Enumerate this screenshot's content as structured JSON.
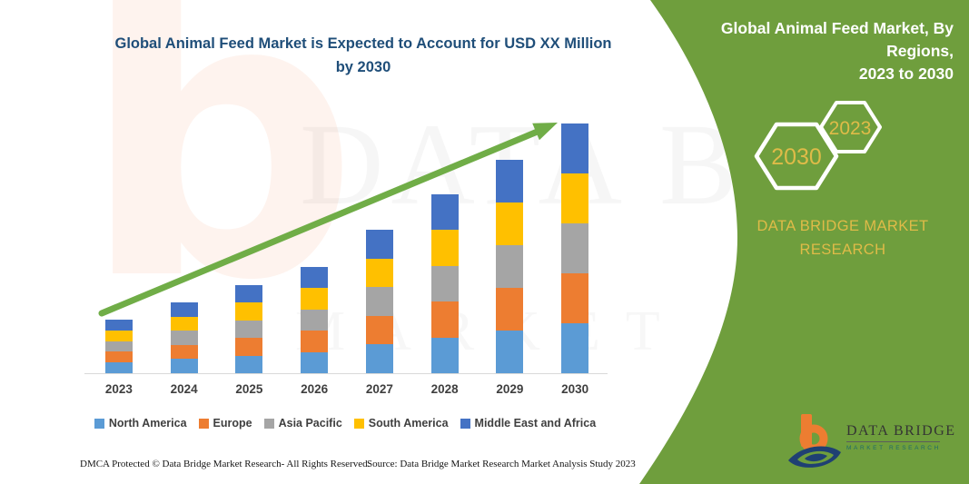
{
  "header": {
    "title_line1": "Global Animal Feed Market is Expected to Account for USD XX Million",
    "title_line2": "by 2030"
  },
  "sidebar": {
    "title_line1": "Global Animal Feed Market, By Regions,",
    "title_line2": "2023 to 2030",
    "hexagons": [
      {
        "label": "2030"
      },
      {
        "label": "2023"
      }
    ],
    "brand_line1": "DATA BRIDGE MARKET",
    "brand_line2": "RESEARCH",
    "panel_color": "#6F9E3D",
    "gold_color": "#DFBB48",
    "logo": {
      "name_text": "DATA BRIDGE",
      "sub_text": "MARKET RESEARCH"
    }
  },
  "chart_data": {
    "type": "bar",
    "stacked": true,
    "title": "Global Animal Feed Market is Expected to Account for USD XX Million by 2030",
    "xlabel": "",
    "ylabel": "",
    "y_axis_visible": false,
    "value_labels_visible": false,
    "values_unit": "USD Million (values masked as XX; heights are relative estimates)",
    "legend_position": "bottom",
    "grid": false,
    "x_axis_line_color": "#D9D9D9",
    "categories": [
      "2023",
      "2024",
      "2025",
      "2026",
      "2027",
      "2028",
      "2029",
      "2030"
    ],
    "series": [
      {
        "name": "North America",
        "color": "#5B9BD5",
        "values": [
          11.8,
          15.6,
          19.4,
          23.4,
          31.6,
          39.4,
          47.0,
          55.0
        ]
      },
      {
        "name": "Europe",
        "color": "#ED7D31",
        "values": [
          11.8,
          15.6,
          19.4,
          23.4,
          31.6,
          39.4,
          47.0,
          55.0
        ]
      },
      {
        "name": "Asia Pacific",
        "color": "#A5A5A5",
        "values": [
          11.8,
          15.6,
          19.4,
          23.4,
          31.6,
          39.4,
          47.0,
          55.0
        ]
      },
      {
        "name": "South America",
        "color": "#FFC000",
        "values": [
          11.8,
          15.6,
          19.4,
          23.4,
          31.6,
          39.4,
          47.0,
          55.0
        ]
      },
      {
        "name": "Middle East and Africa",
        "color": "#4472C4",
        "values": [
          11.8,
          15.6,
          19.4,
          23.4,
          31.6,
          39.4,
          47.0,
          55.0
        ]
      }
    ],
    "stack_totals": [
      59,
      78,
      97,
      117,
      158,
      197,
      235,
      275
    ],
    "annotations": [
      "upward growth trend arrow from 2023 to 2030"
    ],
    "trend_arrow": {
      "color": "#70AD47",
      "from": [
        112,
        345
      ],
      "to": [
        613,
        136
      ]
    }
  },
  "watermark": {
    "letter": "b",
    "line1": "DATA BRIDGE",
    "line2": "MARKET RESEARCH"
  },
  "footer": {
    "left": "DMCA Protected © Data Bridge Market Research-  All Rights Reserved.",
    "right": "Source: Data Bridge Market Research  Market Analysis Study 2023"
  }
}
